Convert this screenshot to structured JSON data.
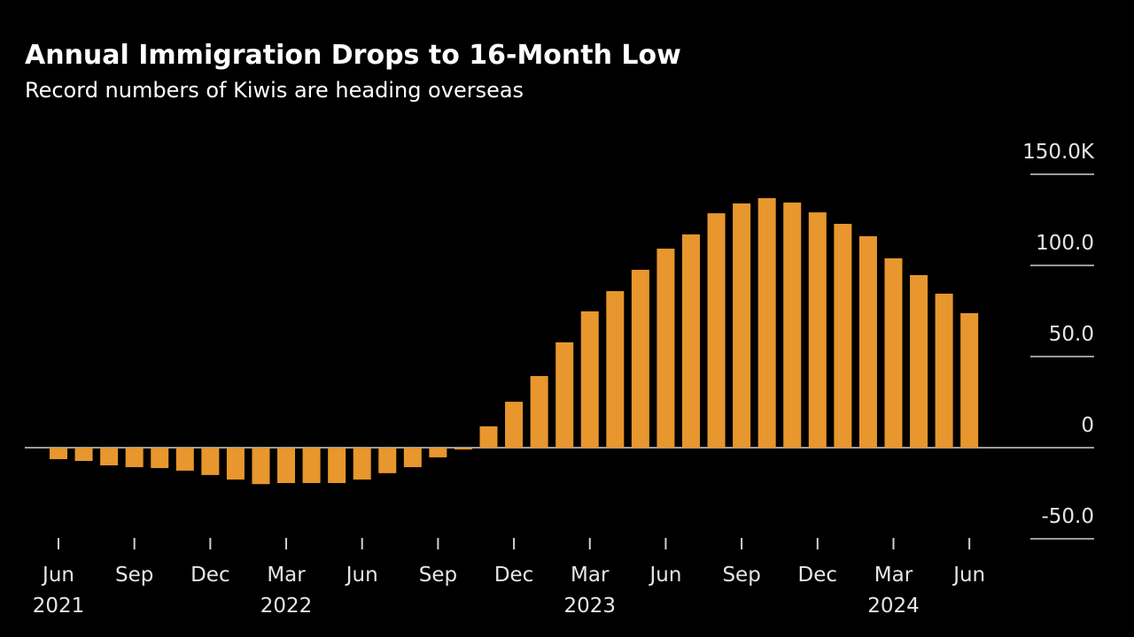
{
  "chart_data": {
    "type": "bar",
    "title": "Annual Immigration Drops to 16-Month Low",
    "subtitle": "Record numbers of Kiwis are heading overseas",
    "categories": [
      "Jun",
      null,
      null,
      "Sep",
      null,
      null,
      "Dec",
      null,
      null,
      "Mar",
      null,
      null,
      "Jun",
      null,
      null,
      "Sep",
      null,
      null,
      "Dec",
      null,
      null,
      "Mar",
      null,
      null,
      "Jun",
      null,
      null,
      "Sep",
      null,
      null,
      "Dec",
      null,
      null,
      "Mar",
      null,
      null,
      "Jun"
    ],
    "x_year_labels": [
      "2021",
      null,
      null,
      null,
      null,
      null,
      null,
      null,
      null,
      "2022",
      null,
      null,
      null,
      null,
      null,
      null,
      null,
      null,
      null,
      null,
      null,
      "2023",
      null,
      null,
      null,
      null,
      null,
      null,
      null,
      null,
      null,
      null,
      null,
      "2024",
      null,
      null,
      null
    ],
    "values": [
      -6.3,
      -7.3,
      -9.7,
      -10.7,
      -11.2,
      -12.6,
      -15.0,
      -17.5,
      -20.0,
      -19.4,
      -19.4,
      -19.4,
      -17.5,
      -14.0,
      -10.7,
      -5.3,
      -1.0,
      11.7,
      25.2,
      39.3,
      57.8,
      74.8,
      85.9,
      97.6,
      109.2,
      117.0,
      128.6,
      134.0,
      136.9,
      134.5,
      129.1,
      122.8,
      116.0,
      103.9,
      94.7,
      84.5,
      73.8
    ],
    "color": "#e8962e",
    "ylim": [
      -50,
      150
    ],
    "yticks": [
      {
        "value": -50,
        "label": "-50.0"
      },
      0,
      {
        "value": 50,
        "label": "50.0"
      },
      {
        "value": 100,
        "label": "100.0"
      },
      {
        "value": 150,
        "label": "150.0K"
      }
    ],
    "grid": true
  }
}
